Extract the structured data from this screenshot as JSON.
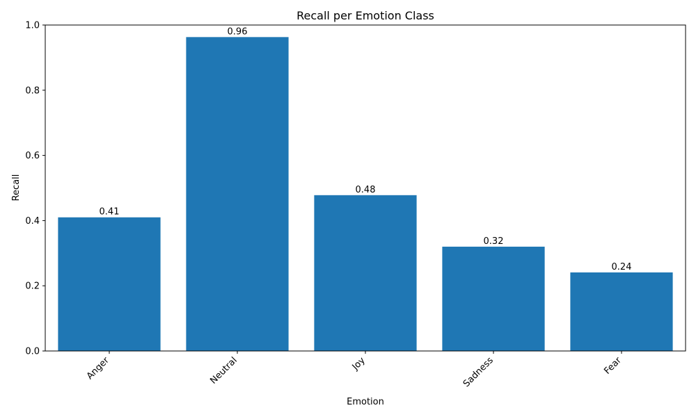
{
  "chart_data": {
    "type": "bar",
    "title": "Recall per Emotion Class",
    "xlabel": "Emotion",
    "ylabel": "Recall",
    "categories": [
      "Anger",
      "Neutral",
      "Joy",
      "Sadness",
      "Fear"
    ],
    "values": [
      0.41,
      0.963,
      0.478,
      0.32,
      0.241
    ],
    "data_labels": [
      "0.41",
      "0.96",
      "0.48",
      "0.32",
      "0.24"
    ],
    "ylim": [
      0,
      1.0
    ],
    "yticks": [
      "0.0",
      "0.2",
      "0.4",
      "0.6",
      "0.8",
      "1.0"
    ],
    "bar_color": "#1f77b4",
    "grid": false,
    "x_tick_rotation": "45deg"
  }
}
